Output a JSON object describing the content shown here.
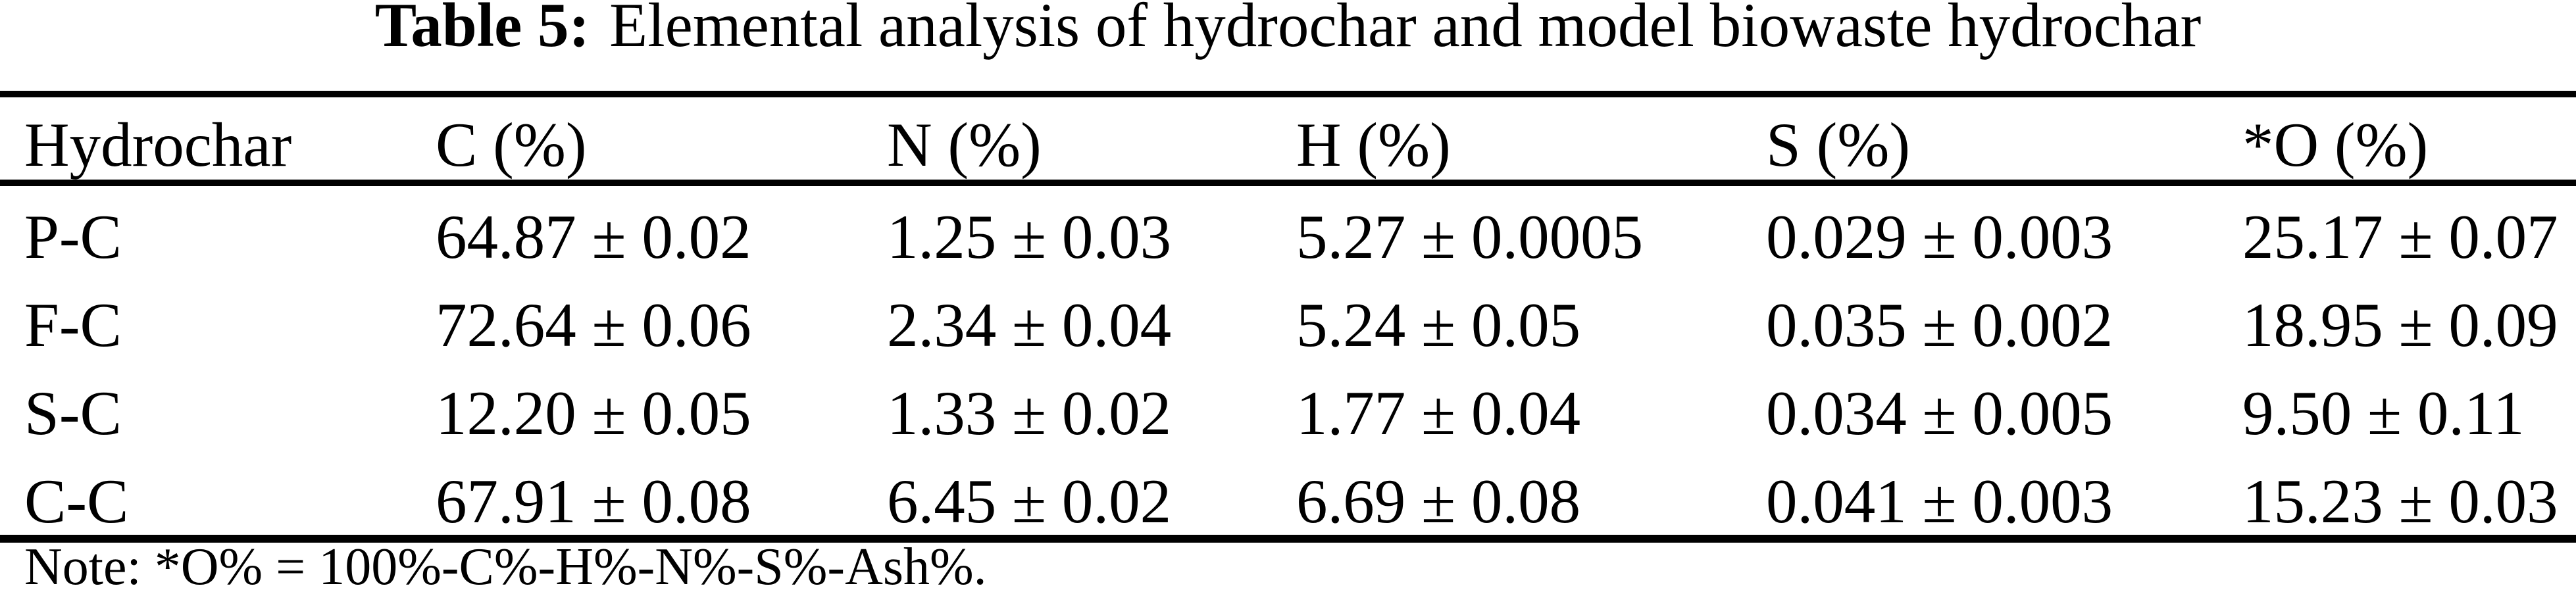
{
  "caption": {
    "label": "Table 5:",
    "text": "Elemental analysis of hydrochar and model biowaste hydrochar"
  },
  "table": {
    "columns": [
      "Hydrochar",
      "C (%)",
      "N (%)",
      "H (%)",
      "S (%)",
      "*O (%)"
    ],
    "rows": [
      [
        "P-C",
        "64.87 ± 0.02",
        "1.25 ± 0.03",
        "5.27 ± 0.0005",
        "0.029 ± 0.003",
        "25.17 ± 0.07"
      ],
      [
        "F-C",
        "72.64 ± 0.06",
        "2.34 ± 0.04",
        "5.24 ± 0.05",
        "0.035 ± 0.002",
        "18.95 ± 0.09"
      ],
      [
        "S-C",
        "12.20 ± 0.05",
        "1.33 ± 0.02",
        "1.77 ± 0.04",
        "0.034 ± 0.005",
        "9.50 ± 0.11"
      ],
      [
        "C-C",
        "67.91 ± 0.08",
        "6.45 ± 0.02",
        "6.69 ± 0.08",
        "0.041 ± 0.003",
        "15.23 ± 0.03"
      ]
    ]
  },
  "note": "Note: *O% = 100%-C%-H%-N%-S%-Ash%."
}
